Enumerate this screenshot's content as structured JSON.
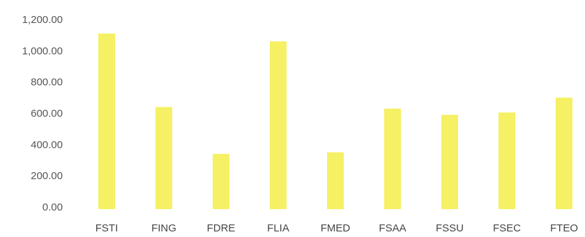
{
  "chart_data": {
    "type": "bar",
    "categories": [
      "FSTI",
      "FING",
      "FDRE",
      "FLIA",
      "FMED",
      "FSAA",
      "FSSU",
      "FSEC",
      "FTEO"
    ],
    "values": [
      1110,
      640,
      340,
      1060,
      350,
      630,
      590,
      605,
      700
    ],
    "yticks": [
      "0.00",
      "200.00",
      "400.00",
      "600.00",
      "800.00",
      "1,000.00",
      "1,200.00"
    ],
    "ylim": [
      0,
      1200
    ],
    "title": "",
    "xlabel": "",
    "ylabel": "",
    "grid": false,
    "legend": "none",
    "bar_color": "#f5f064"
  }
}
